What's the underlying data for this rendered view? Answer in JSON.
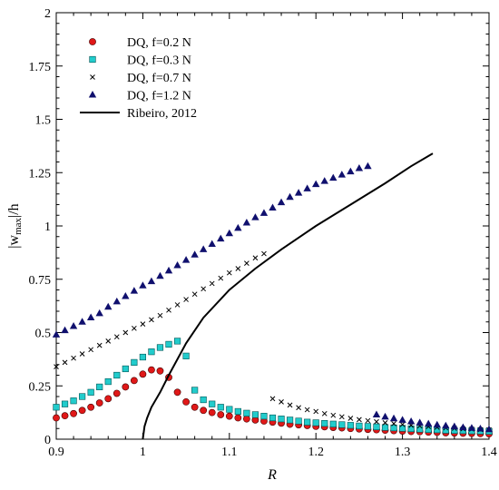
{
  "chart_data": {
    "type": "scatter",
    "xlabel": "R",
    "ylabel_parts": [
      "|w",
      "max",
      "|/h"
    ],
    "xlim": [
      0.9,
      1.4
    ],
    "ylim": [
      0,
      2
    ],
    "xticks": [
      0.9,
      1.0,
      1.1,
      1.2,
      1.3,
      1.4
    ],
    "xtick_labels": [
      "0.9",
      "1",
      "1.1",
      "1.2",
      "1.3",
      "1.4"
    ],
    "yticks": [
      0,
      0.25,
      0.5,
      0.75,
      1,
      1.25,
      1.5,
      1.75,
      2
    ],
    "ytick_labels": [
      "0",
      "0.25",
      "0.5",
      "0.75",
      "1",
      "1.25",
      "1.5",
      "1.75",
      "2"
    ],
    "grid": false,
    "legend_position": "top-left",
    "series": [
      {
        "name": "DQ, f=0.2 N",
        "marker": "circle",
        "color": "#e01818",
        "x": [
          0.9,
          0.91,
          0.92,
          0.93,
          0.94,
          0.95,
          0.96,
          0.97,
          0.98,
          0.99,
          1.0,
          1.01,
          1.02,
          1.03,
          1.04,
          1.05,
          1.06,
          1.07,
          1.08,
          1.09,
          1.1,
          1.11,
          1.12,
          1.13,
          1.14,
          1.15,
          1.16,
          1.17,
          1.18,
          1.19,
          1.2,
          1.21,
          1.22,
          1.23,
          1.24,
          1.25,
          1.26,
          1.27,
          1.28,
          1.29,
          1.3,
          1.31,
          1.32,
          1.33,
          1.34,
          1.35,
          1.36,
          1.37,
          1.38,
          1.39,
          1.4
        ],
        "y": [
          0.1,
          0.11,
          0.12,
          0.135,
          0.15,
          0.17,
          0.19,
          0.215,
          0.245,
          0.275,
          0.305,
          0.325,
          0.32,
          0.29,
          0.22,
          0.175,
          0.15,
          0.135,
          0.125,
          0.115,
          0.108,
          0.1,
          0.095,
          0.09,
          0.085,
          0.08,
          0.075,
          0.07,
          0.067,
          0.064,
          0.06,
          0.058,
          0.055,
          0.053,
          0.05,
          0.048,
          0.046,
          0.044,
          0.042,
          0.04,
          0.038,
          0.036,
          0.035,
          0.033,
          0.032,
          0.03,
          0.029,
          0.028,
          0.027,
          0.026,
          0.025
        ]
      },
      {
        "name": "DQ, f=0.3 N",
        "marker": "square",
        "color": "#22cccc",
        "x": [
          0.9,
          0.91,
          0.92,
          0.93,
          0.94,
          0.95,
          0.96,
          0.97,
          0.98,
          0.99,
          1.0,
          1.01,
          1.02,
          1.03,
          1.04,
          1.05,
          1.06,
          1.07,
          1.08,
          1.09,
          1.1,
          1.11,
          1.12,
          1.13,
          1.14,
          1.15,
          1.16,
          1.17,
          1.18,
          1.19,
          1.2,
          1.21,
          1.22,
          1.23,
          1.24,
          1.25,
          1.26,
          1.27,
          1.28,
          1.29,
          1.3,
          1.31,
          1.32,
          1.33,
          1.34,
          1.35,
          1.36,
          1.37,
          1.38,
          1.39,
          1.4
        ],
        "y": [
          0.15,
          0.165,
          0.18,
          0.2,
          0.22,
          0.245,
          0.27,
          0.3,
          0.33,
          0.36,
          0.385,
          0.41,
          0.43,
          0.445,
          0.46,
          0.39,
          0.23,
          0.185,
          0.165,
          0.15,
          0.14,
          0.13,
          0.122,
          0.115,
          0.108,
          0.1,
          0.095,
          0.09,
          0.085,
          0.08,
          0.077,
          0.074,
          0.071,
          0.068,
          0.065,
          0.062,
          0.06,
          0.058,
          0.055,
          0.053,
          0.051,
          0.049,
          0.047,
          0.045,
          0.044,
          0.042,
          0.041,
          0.04,
          0.039,
          0.038,
          0.037
        ]
      },
      {
        "name": "DQ, f=0.7 N",
        "marker": "cross",
        "color": "#000000",
        "x": [
          0.9,
          0.91,
          0.92,
          0.93,
          0.94,
          0.95,
          0.96,
          0.97,
          0.98,
          0.99,
          1.0,
          1.01,
          1.02,
          1.03,
          1.04,
          1.05,
          1.06,
          1.07,
          1.08,
          1.09,
          1.1,
          1.11,
          1.12,
          1.13,
          1.14,
          1.15,
          1.16,
          1.17,
          1.18,
          1.19,
          1.2,
          1.21,
          1.22,
          1.23,
          1.24,
          1.25,
          1.26,
          1.27,
          1.28,
          1.29,
          1.3,
          1.31,
          1.32,
          1.33,
          1.34,
          1.35,
          1.36,
          1.37,
          1.38,
          1.39,
          1.4
        ],
        "y": [
          0.34,
          0.36,
          0.38,
          0.4,
          0.42,
          0.44,
          0.46,
          0.48,
          0.5,
          0.52,
          0.54,
          0.56,
          0.58,
          0.605,
          0.63,
          0.655,
          0.68,
          0.705,
          0.73,
          0.755,
          0.78,
          0.8,
          0.825,
          0.85,
          0.87,
          0.19,
          0.175,
          0.16,
          0.148,
          0.138,
          0.13,
          0.12,
          0.112,
          0.105,
          0.098,
          0.092,
          0.087,
          0.082,
          0.077,
          0.073,
          0.069,
          0.065,
          0.062,
          0.059,
          0.056,
          0.053,
          0.051,
          0.049,
          0.047,
          0.045,
          0.044
        ]
      },
      {
        "name": "DQ, f=1.2 N",
        "marker": "triangle",
        "color": "#10106e",
        "x": [
          0.9,
          0.91,
          0.92,
          0.93,
          0.94,
          0.95,
          0.96,
          0.97,
          0.98,
          0.99,
          1.0,
          1.01,
          1.02,
          1.03,
          1.04,
          1.05,
          1.06,
          1.07,
          1.08,
          1.09,
          1.1,
          1.11,
          1.12,
          1.13,
          1.14,
          1.15,
          1.16,
          1.17,
          1.18,
          1.19,
          1.2,
          1.21,
          1.22,
          1.23,
          1.24,
          1.25,
          1.26,
          1.27,
          1.28,
          1.29,
          1.3,
          1.31,
          1.32,
          1.33,
          1.34,
          1.35,
          1.36,
          1.37,
          1.38,
          1.39,
          1.4
        ],
        "y": [
          0.49,
          0.51,
          0.53,
          0.55,
          0.57,
          0.59,
          0.62,
          0.645,
          0.67,
          0.695,
          0.72,
          0.74,
          0.765,
          0.79,
          0.815,
          0.84,
          0.865,
          0.89,
          0.915,
          0.94,
          0.965,
          0.99,
          1.015,
          1.04,
          1.06,
          1.085,
          1.11,
          1.135,
          1.155,
          1.175,
          1.195,
          1.21,
          1.225,
          1.24,
          1.255,
          1.27,
          1.28,
          0.115,
          0.105,
          0.097,
          0.09,
          0.083,
          0.077,
          0.072,
          0.067,
          0.063,
          0.059,
          0.055,
          0.052,
          0.049,
          0.046
        ]
      },
      {
        "name": "Ribeiro, 2012",
        "marker": "line",
        "color": "#000000",
        "x": [
          1.0,
          1.002,
          1.005,
          1.01,
          1.02,
          1.03,
          1.05,
          1.07,
          1.1,
          1.13,
          1.16,
          1.2,
          1.24,
          1.28,
          1.31,
          1.335
        ],
        "y": [
          0,
          0.06,
          0.1,
          0.15,
          0.22,
          0.3,
          0.45,
          0.57,
          0.7,
          0.8,
          0.89,
          1.0,
          1.1,
          1.2,
          1.28,
          1.34
        ]
      }
    ]
  }
}
